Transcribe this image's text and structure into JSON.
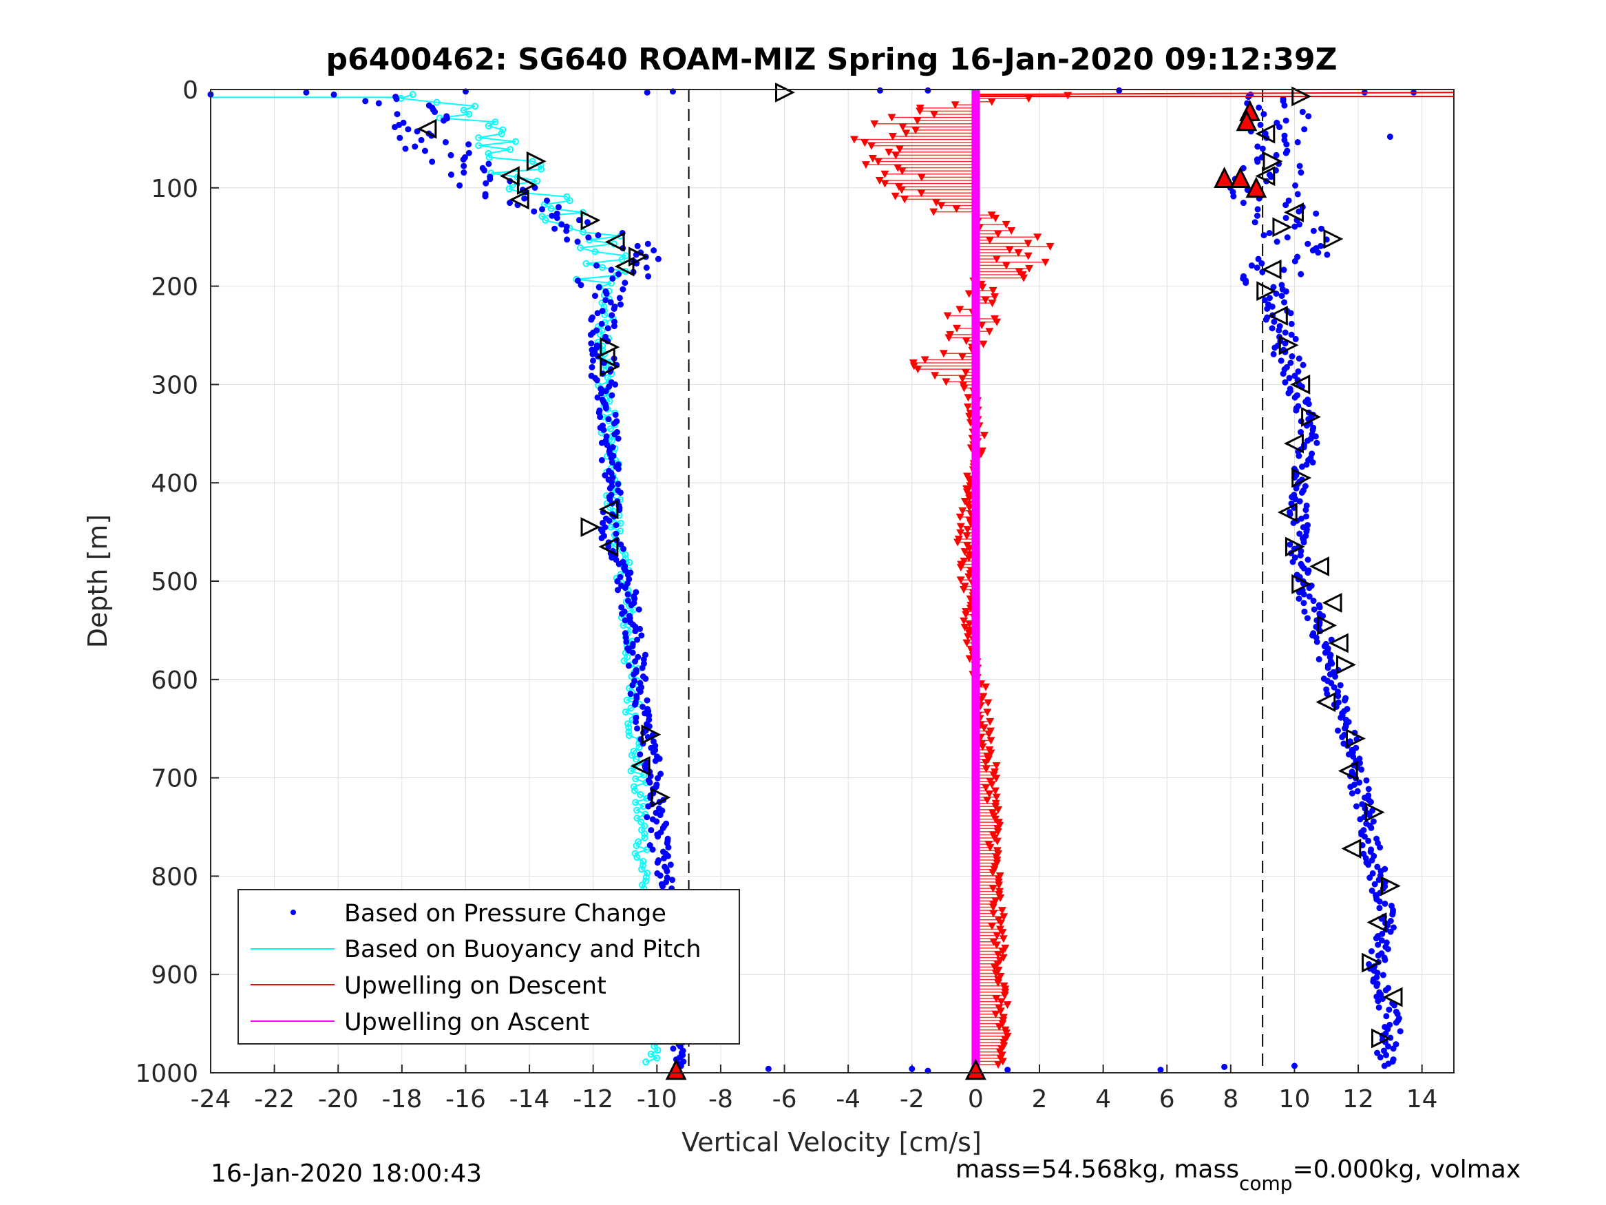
{
  "chart_data": {
    "type": "scatter",
    "title": "p6400462: SG640 ROAM-MIZ Spring 16-Jan-2020 09:12:39Z",
    "xlabel": "Vertical Velocity [cm/s]",
    "ylabel": "Depth [m]",
    "xlim": [
      -24,
      15
    ],
    "ylim": [
      0,
      1000
    ],
    "y_reversed": true,
    "grid": true,
    "legend_position": "bottom-left",
    "x_ticks": [
      "-24",
      "-22",
      "-20",
      "-18",
      "-16",
      "-14",
      "-12",
      "-10",
      "-8",
      "-6",
      "-4",
      "-2",
      "0",
      "2",
      "4",
      "6",
      "8",
      "10",
      "12",
      "14"
    ],
    "y_ticks": [
      "0",
      "100",
      "200",
      "300",
      "400",
      "500",
      "600",
      "700",
      "800",
      "900",
      "1000"
    ],
    "reference_lines": [
      -9,
      9
    ],
    "series": [
      {
        "name": "Based on Pressure Change",
        "color": "#0000ff",
        "marker": "dot",
        "descent": {
          "depth": [
            5,
            20,
            40,
            60,
            80,
            100,
            120,
            140,
            160,
            180,
            200,
            250,
            300,
            350,
            400,
            450,
            500,
            550,
            600,
            650,
            700,
            750,
            800,
            850,
            900,
            950,
            990
          ],
          "velocity": [
            -19.5,
            -17.5,
            -17.2,
            -16.8,
            -15.8,
            -15.0,
            -14.2,
            -12.2,
            -11.3,
            -11.0,
            -11.5,
            -11.7,
            -11.6,
            -11.5,
            -11.4,
            -11.5,
            -11.0,
            -10.7,
            -10.6,
            -10.4,
            -10.1,
            -10.0,
            -9.8,
            -9.7,
            -9.6,
            -9.5,
            -9.4
          ]
        },
        "ascent": {
          "depth": [
            5,
            20,
            40,
            60,
            80,
            100,
            120,
            140,
            160,
            180,
            200,
            250,
            300,
            350,
            400,
            450,
            500,
            550,
            600,
            650,
            700,
            750,
            800,
            850,
            900,
            950,
            990
          ],
          "velocity": [
            9.8,
            9.5,
            9.8,
            9.6,
            9.2,
            9.0,
            9.6,
            10.0,
            10.3,
            9.8,
            9.4,
            9.6,
            10.0,
            10.5,
            10.2,
            10.1,
            10.2,
            10.8,
            11.2,
            11.6,
            12.0,
            12.3,
            12.6,
            12.9,
            12.5,
            13.1,
            12.8
          ]
        }
      },
      {
        "name": "Based on Buoyancy and Pitch",
        "color": "#00ffff",
        "marker": "o-line",
        "depth": [
          5,
          20,
          40,
          60,
          80,
          100,
          120,
          140,
          160,
          180,
          200,
          250,
          300,
          350,
          400,
          450,
          500,
          550,
          600,
          650,
          700,
          750,
          800,
          850,
          900,
          950,
          990
        ],
        "velocity": [
          -18.0,
          -16.5,
          -15.6,
          -14.8,
          -14.4,
          -14.2,
          -13.2,
          -12.5,
          -11.8,
          -11.8,
          -11.6,
          -11.6,
          -11.6,
          -11.5,
          -11.4,
          -11.3,
          -11.0,
          -10.9,
          -10.8,
          -10.7,
          -10.6,
          -10.5,
          -10.4,
          -10.3,
          -10.3,
          -10.2,
          -10.2
        ]
      },
      {
        "name": "Upwelling on Descent",
        "color": "#ff0000",
        "marker": "triangle-down-line",
        "depth": [
          5,
          20,
          40,
          60,
          80,
          100,
          120,
          140,
          160,
          180,
          200,
          250,
          280,
          300,
          350,
          400,
          450,
          500,
          550,
          600,
          650,
          700,
          750,
          800,
          850,
          900,
          950,
          990
        ],
        "velocity": [
          4.0,
          -1.5,
          -2.6,
          -3.2,
          -2.5,
          -2.4,
          -1.0,
          1.0,
          1.5,
          1.4,
          0.2,
          -0.2,
          -1.2,
          -0.2,
          0.1,
          -0.1,
          -0.4,
          -0.3,
          -0.2,
          0.1,
          0.3,
          0.5,
          0.6,
          0.6,
          0.7,
          0.8,
          0.8,
          0.8
        ]
      },
      {
        "name": "Upwelling on Ascent",
        "color": "#ff00ff",
        "marker": "line",
        "depth": [
          0,
          1000
        ],
        "velocity": [
          0,
          0
        ]
      }
    ],
    "markers": {
      "open_triangles": [
        [
          -6.0,
          3
        ],
        [
          -17.2,
          40
        ],
        [
          -13.8,
          73
        ],
        [
          -14.6,
          88
        ],
        [
          -14.1,
          97
        ],
        [
          -14.3,
          112
        ],
        [
          -12.1,
          133
        ],
        [
          -11.3,
          155
        ],
        [
          -10.6,
          170
        ],
        [
          -11.0,
          180
        ],
        [
          -11.5,
          262
        ],
        [
          -11.6,
          272
        ],
        [
          -11.5,
          282
        ],
        [
          -11.5,
          427
        ],
        [
          -12.1,
          445
        ],
        [
          -11.5,
          465
        ],
        [
          -10.2,
          656
        ],
        [
          -10.5,
          688
        ],
        [
          -9.9,
          720
        ],
        [
          -10.2,
          921
        ],
        [
          10.2,
          7
        ],
        [
          9.1,
          45
        ],
        [
          9.3,
          73
        ],
        [
          9.1,
          88
        ],
        [
          9.6,
          140
        ],
        [
          10.0,
          125
        ],
        [
          11.2,
          152
        ],
        [
          9.3,
          183
        ],
        [
          9.1,
          205
        ],
        [
          9.5,
          230
        ],
        [
          9.8,
          260
        ],
        [
          10.2,
          300
        ],
        [
          10.5,
          333
        ],
        [
          10.0,
          360
        ],
        [
          10.2,
          395
        ],
        [
          9.8,
          430
        ],
        [
          10.0,
          465
        ],
        [
          10.8,
          485
        ],
        [
          10.2,
          503
        ],
        [
          11.2,
          522
        ],
        [
          11.0,
          545
        ],
        [
          11.4,
          563
        ],
        [
          11.6,
          585
        ],
        [
          11.0,
          623
        ],
        [
          11.9,
          660
        ],
        [
          11.7,
          693
        ],
        [
          12.5,
          735
        ],
        [
          11.8,
          772
        ],
        [
          13.0,
          810
        ],
        [
          12.6,
          847
        ],
        [
          12.4,
          888
        ],
        [
          13.1,
          923
        ],
        [
          12.7,
          965
        ]
      ],
      "filled_triangles": [
        [
          -9.4,
          997
        ],
        [
          0.0,
          997
        ],
        [
          8.6,
          22
        ],
        [
          8.5,
          32
        ],
        [
          7.8,
          90
        ],
        [
          8.3,
          90
        ],
        [
          8.8,
          100
        ]
      ]
    }
  },
  "legend": {
    "items": [
      {
        "label": "Based on Pressure Change",
        "color": "#0000ff",
        "style": "dot"
      },
      {
        "label": "Based on Buoyancy and Pitch",
        "color": "#00ffff",
        "style": "line"
      },
      {
        "label": "Upwelling on Descent",
        "color": "#ff0000",
        "style": "line"
      },
      {
        "label": "Upwelling on Ascent",
        "color": "#ff00ff",
        "style": "line"
      }
    ]
  },
  "footer": {
    "timestamp": "16-Jan-2020 18:00:43",
    "mass_text_1": "mass=54.568kg, mass",
    "mass_sub": "comp",
    "mass_text_2": "=0.000kg, volmax"
  }
}
